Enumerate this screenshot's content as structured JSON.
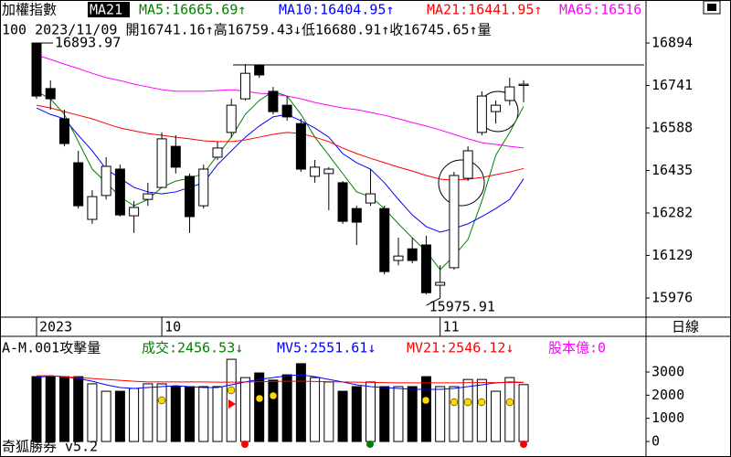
{
  "period": "日線",
  "app_label": "奇狐勝券 v5.2",
  "chart_data": [
    {
      "type": "candlestick",
      "title": "加權指數",
      "subtitle": "MA21",
      "info": "100 2023/11/09 開16741.16↑高16759.43↓低16680.91↑收16745.65↑量",
      "categories": [
        "2023",
        null,
        null,
        null,
        null,
        null,
        null,
        null,
        null,
        "10",
        null,
        null,
        null,
        null,
        null,
        null,
        null,
        null,
        null,
        null,
        null,
        null,
        null,
        null,
        null,
        null,
        null,
        null,
        null,
        "11",
        null,
        null,
        null,
        null,
        null,
        null
      ],
      "open": [
        16893.97,
        16730,
        16621,
        16463,
        16259,
        16345,
        16440,
        16272,
        16331,
        16374,
        16522,
        16414,
        16308,
        16483,
        16572,
        16693,
        16812,
        16720,
        16670,
        16604,
        16414,
        16424,
        16391,
        16298,
        16318,
        16298,
        16111,
        16153,
        16167,
        16022,
        16085,
        16407,
        16572,
        16647,
        16687,
        16741.16
      ],
      "high": [
        16893.97,
        16759,
        16654,
        16506,
        16364,
        16483,
        16456,
        16325,
        16391,
        16572,
        16562,
        16424,
        16456,
        16539,
        16693,
        16818,
        16818,
        16736,
        16703,
        16621,
        16473,
        16447,
        16397,
        16308,
        16440,
        16308,
        16193,
        16193,
        16200,
        16094,
        16430,
        16522,
        16720,
        16687,
        16769,
        16759.43
      ],
      "low": [
        16693,
        16654,
        16522,
        16298,
        16243,
        16331,
        16269,
        16210,
        16308,
        16374,
        16424,
        16210,
        16298,
        16473,
        16555,
        16687,
        16769,
        16637,
        16614,
        16430,
        16391,
        16292,
        16243,
        16167,
        16308,
        16061,
        16094,
        16101,
        15989,
        15975.91,
        16078,
        16397,
        16562,
        16604,
        16670,
        16680.91
      ],
      "close": [
        16703,
        16693,
        16532,
        16308,
        16341,
        16450,
        16275,
        16302,
        16351,
        16549,
        16447,
        16269,
        16440,
        16516,
        16670,
        16785,
        16779,
        16647,
        16628,
        16440,
        16447,
        16440,
        16252,
        16249,
        16351,
        16071,
        16127,
        16111,
        15995,
        16032,
        16417,
        16506,
        16703,
        16670,
        16736,
        16745.65
      ],
      "series": [
        {
          "name": "MA5:16665.69↑",
          "color": "#008000",
          "values": [
            16720,
            16693,
            16637,
            16539,
            16440,
            16391,
            16341,
            16308,
            16331,
            16374,
            16397,
            16407,
            16424,
            16490,
            16555,
            16637,
            16687,
            16720,
            16703,
            16637,
            16555,
            16490,
            16424,
            16358,
            16341,
            16298,
            16243,
            16193,
            16144,
            16078,
            16127,
            16187,
            16325,
            16490,
            16572,
            16665.69
          ]
        },
        {
          "name": "MA10:16404.95↑",
          "color": "#0000ff",
          "values": [
            16660,
            16637,
            16621,
            16562,
            16506,
            16440,
            16407,
            16374,
            16358,
            16351,
            16358,
            16374,
            16391,
            16456,
            16506,
            16555,
            16595,
            16628,
            16637,
            16614,
            16588,
            16555,
            16496,
            16463,
            16440,
            16391,
            16331,
            16275,
            16233,
            16213,
            16226,
            16243,
            16269,
            16298,
            16331,
            16404.95
          ]
        },
        {
          "name": "MA21:16441.95↑",
          "color": "#ff0000",
          "values": [
            16670,
            16660,
            16647,
            16634,
            16621,
            16604,
            16588,
            16578,
            16568,
            16562,
            16555,
            16549,
            16542,
            16539,
            16539,
            16545,
            16555,
            16565,
            16572,
            16568,
            16555,
            16539,
            16516,
            16496,
            16479,
            16463,
            16447,
            16433,
            16417,
            16404,
            16400,
            16404,
            16410,
            16420,
            16430,
            16441.95
          ]
        },
        {
          "name": "MA65:16516.32",
          "color": "#ff00ff",
          "values": [
            16851,
            16835,
            16818,
            16802,
            16785,
            16769,
            16759,
            16746,
            16736,
            16726,
            16720,
            16720,
            16720,
            16723,
            16726,
            16720,
            16713,
            16710,
            16703,
            16693,
            16680,
            16670,
            16660,
            16654,
            16644,
            16634,
            16621,
            16608,
            16595,
            16581,
            16565,
            16549,
            16535,
            16529,
            16522,
            16516.32
          ]
        }
      ],
      "ylim": [
        15907,
        16983
      ],
      "yticks": [
        15976,
        16129,
        16282,
        16435,
        16588,
        16741,
        16894
      ]
    },
    {
      "type": "bar",
      "title": "A-M.001攻擊量",
      "name": "成交:2456.53↓",
      "color": "#008000",
      "values": [
        2800,
        2800,
        2800,
        2800,
        2490,
        2170,
        2170,
        2290,
        2490,
        2490,
        2370,
        2370,
        2370,
        2370,
        3550,
        2760,
        2960,
        2650,
        2880,
        3360,
        2760,
        2570,
        2170,
        2370,
        2570,
        2370,
        2370,
        2370,
        2800,
        2370,
        2370,
        2680,
        2680,
        2170,
        2760,
        2456.53
      ],
      "series": [
        {
          "name": "MV5:2551.61↓",
          "color": "#0000ff",
          "values": [
            2760,
            2840,
            2800,
            2720,
            2600,
            2450,
            2330,
            2290,
            2330,
            2370,
            2410,
            2370,
            2330,
            2330,
            2450,
            2570,
            2680,
            2760,
            2840,
            2880,
            2800,
            2680,
            2570,
            2450,
            2370,
            2330,
            2290,
            2250,
            2250,
            2250,
            2290,
            2370,
            2450,
            2530,
            2570,
            2551.61
          ]
        },
        {
          "name": "MV21:2546.12↓",
          "color": "#ff0000",
          "values": [
            2840,
            2840,
            2800,
            2760,
            2720,
            2680,
            2640,
            2600,
            2570,
            2570,
            2570,
            2570,
            2570,
            2560,
            2560,
            2570,
            2580,
            2590,
            2600,
            2600,
            2590,
            2580,
            2570,
            2560,
            2550,
            2540,
            2530,
            2530,
            2530,
            2530,
            2530,
            2540,
            2540,
            2540,
            2545,
            2546.12
          ]
        }
      ],
      "extra": "股本億:0",
      "extra_color": "#ff00ff",
      "ylim": [
        -590,
        4540
      ],
      "yticks": [
        0,
        1000,
        2000,
        3000
      ]
    }
  ]
}
